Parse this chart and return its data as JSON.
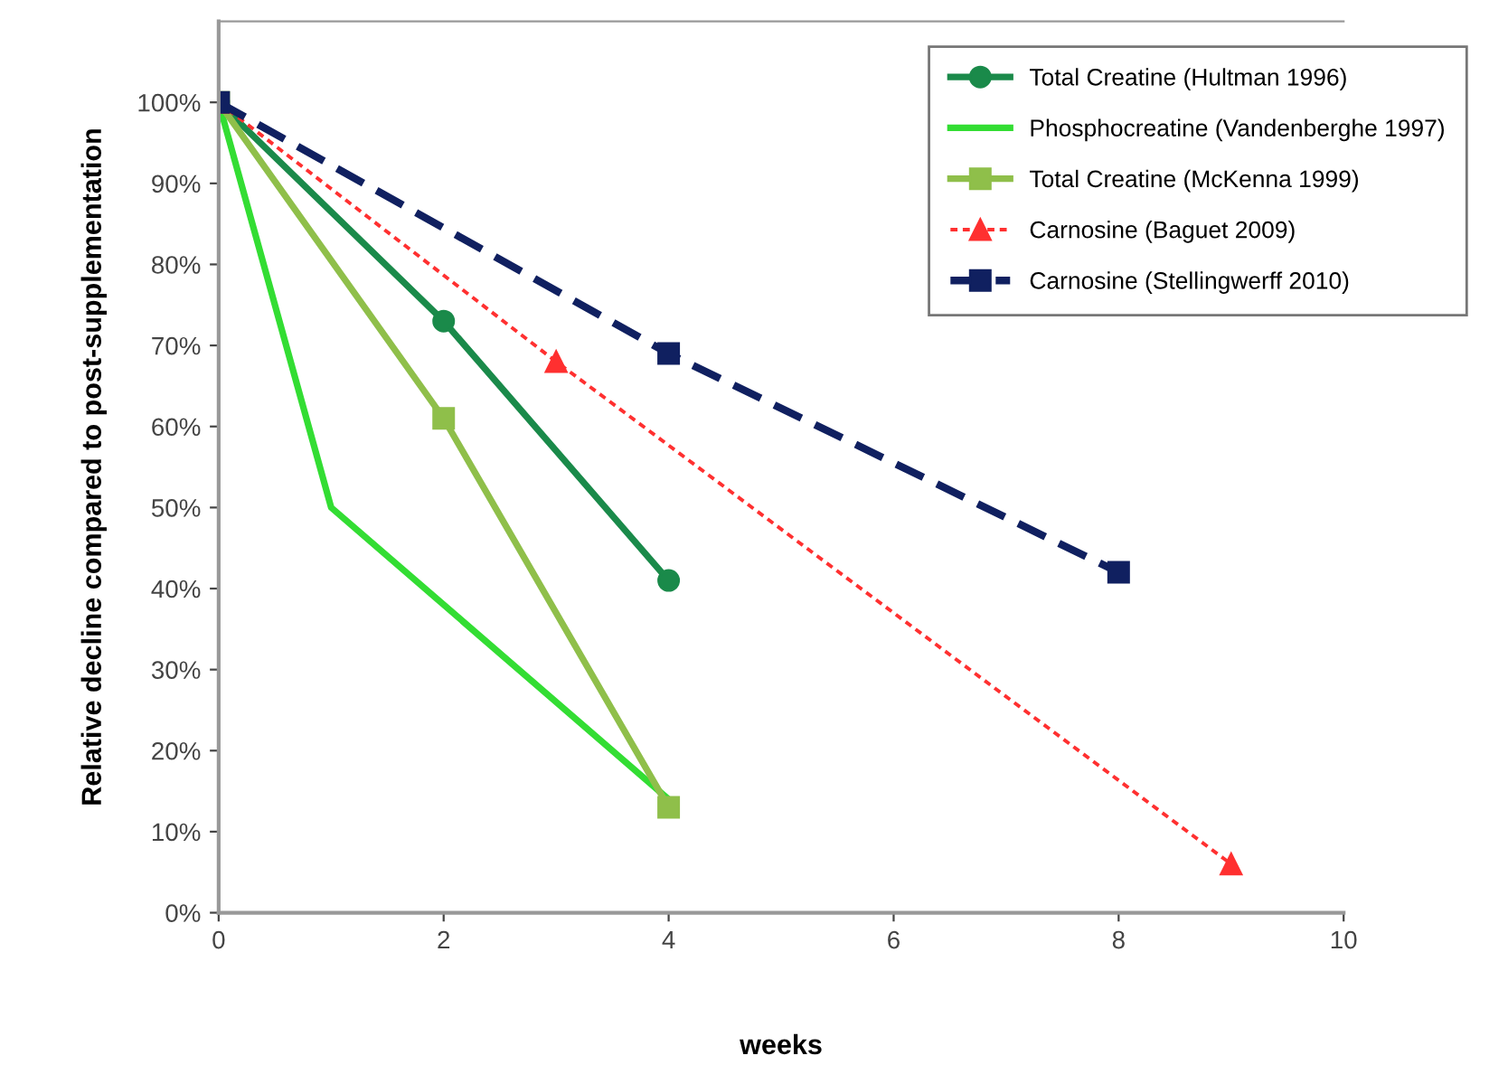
{
  "chart_data": {
    "type": "line",
    "xlabel": "weeks",
    "ylabel": "Relative decline compared to post-supplementation",
    "xlim": [
      0,
      10
    ],
    "xticks": [
      0,
      2,
      4,
      6,
      8,
      10
    ],
    "ylim": [
      0,
      110
    ],
    "yticks": [
      {
        "value": 0,
        "label": "0%"
      },
      {
        "value": 10,
        "label": "10%"
      },
      {
        "value": 20,
        "label": "20%"
      },
      {
        "value": 30,
        "label": "30%"
      },
      {
        "value": 40,
        "label": "40%"
      },
      {
        "value": 50,
        "label": "50%"
      },
      {
        "value": 60,
        "label": "60%"
      },
      {
        "value": 70,
        "label": "70%"
      },
      {
        "value": 80,
        "label": "80%"
      },
      {
        "value": 90,
        "label": "90%"
      },
      {
        "value": 100,
        "label": "100%"
      }
    ],
    "grid": false,
    "legend": "top right",
    "series": [
      {
        "name": "Total Creatine (Hultman 1996)",
        "color": "#1a8a4a",
        "x": [
          0,
          2,
          4
        ],
        "values": [
          100,
          73,
          41
        ],
        "marker": "circle",
        "line_style": "solid"
      },
      {
        "name": "Phosphocreatine (Vandenberghe 1997)",
        "color": "#33dd33",
        "x": [
          0,
          1,
          4
        ],
        "values": [
          100,
          50,
          14
        ],
        "marker": "none",
        "line_style": "solid"
      },
      {
        "name": "Total Creatine (McKenna 1999)",
        "color": "#8fbf4a",
        "x": [
          0,
          2,
          4
        ],
        "values": [
          100,
          61,
          13
        ],
        "marker": "square",
        "line_style": "solid"
      },
      {
        "name": "Carnosine (Baguet 2009)",
        "color": "#ff3030",
        "x": [
          0,
          3,
          9
        ],
        "values": [
          100,
          68,
          6
        ],
        "marker": "triangle",
        "line_style": "dotted"
      },
      {
        "name": "Carnosine (Stellingwerff 2010)",
        "color": "#102060",
        "x": [
          0,
          4,
          8
        ],
        "values": [
          100,
          69,
          42
        ],
        "marker": "square",
        "line_style": "dashed"
      }
    ]
  }
}
